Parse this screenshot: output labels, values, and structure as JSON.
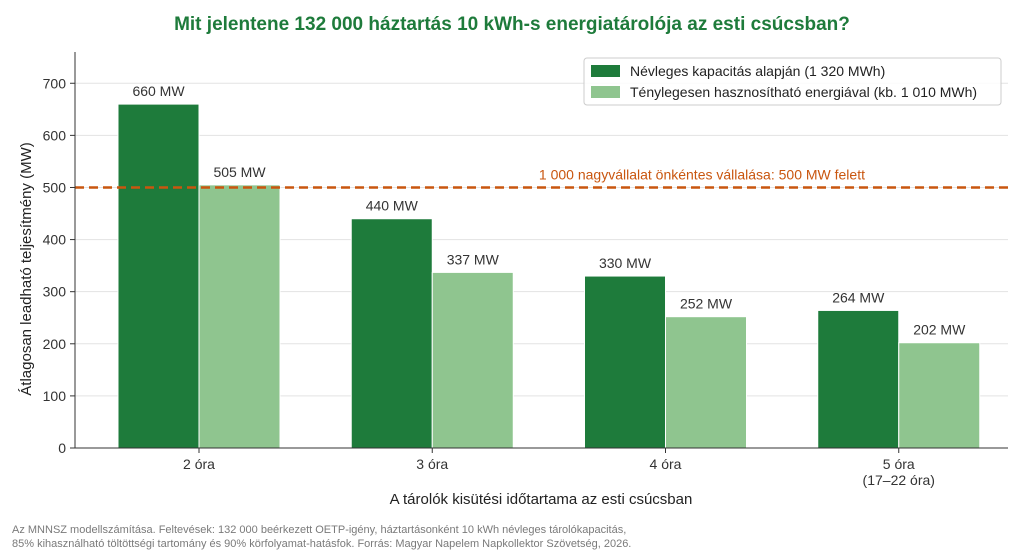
{
  "chart_data": {
    "type": "bar",
    "title": "Mit jelentene 132 000 háztartás 10 kWh-s energiatárolója az esti csúcsban?",
    "xlabel": "A tárolók kisütési időtartama az esti csúcsban",
    "ylabel": "Átlagosan leadható teljesítmény (MW)",
    "categories": [
      "2 óra",
      "3 óra",
      "4 óra",
      "5 óra"
    ],
    "category_sublabels": [
      "",
      "",
      "",
      "(17–22 óra)"
    ],
    "series": [
      {
        "name": "Névleges kapacitás alapján (1 320 MWh)",
        "color": "#1e7b3b",
        "values": [
          660,
          440,
          330,
          264
        ],
        "labels": [
          "660 MW",
          "440 MW",
          "330 MW",
          "264 MW"
        ]
      },
      {
        "name": "Ténylegesen hasznosítható energiával (kb. 1 010 MWh)",
        "color": "#8fc58f",
        "values": [
          505,
          337,
          252,
          202
        ],
        "labels": [
          "505 MW",
          "337 MW",
          "252 MW",
          "202 MW"
        ]
      }
    ],
    "ylim": [
      0,
      760
    ],
    "yticks": [
      0,
      100,
      200,
      300,
      400,
      500,
      600,
      700
    ],
    "grid": true,
    "legend_position": "top-right",
    "reference_line": {
      "value": 500,
      "label": "1 000 nagyvállalat önkéntes vállalása: 500 MW felett",
      "color": "#c9560f"
    },
    "colors": {
      "title": "#1e7b3b",
      "axis": "#333333",
      "grid": "#e3e3e3"
    }
  },
  "footnote": {
    "line1": "Az MNNSZ modellszámítása. Feltevések: 132 000 beérkezett OETP-igény, háztartásonként 10 kWh névleges tárolókapacitás,",
    "line2": "85% kihasználható töltöttségi tartomány és 90% körfolyamat-hatásfok. Forrás: Magyar Napelem Napkollektor Szövetség, 2026."
  }
}
